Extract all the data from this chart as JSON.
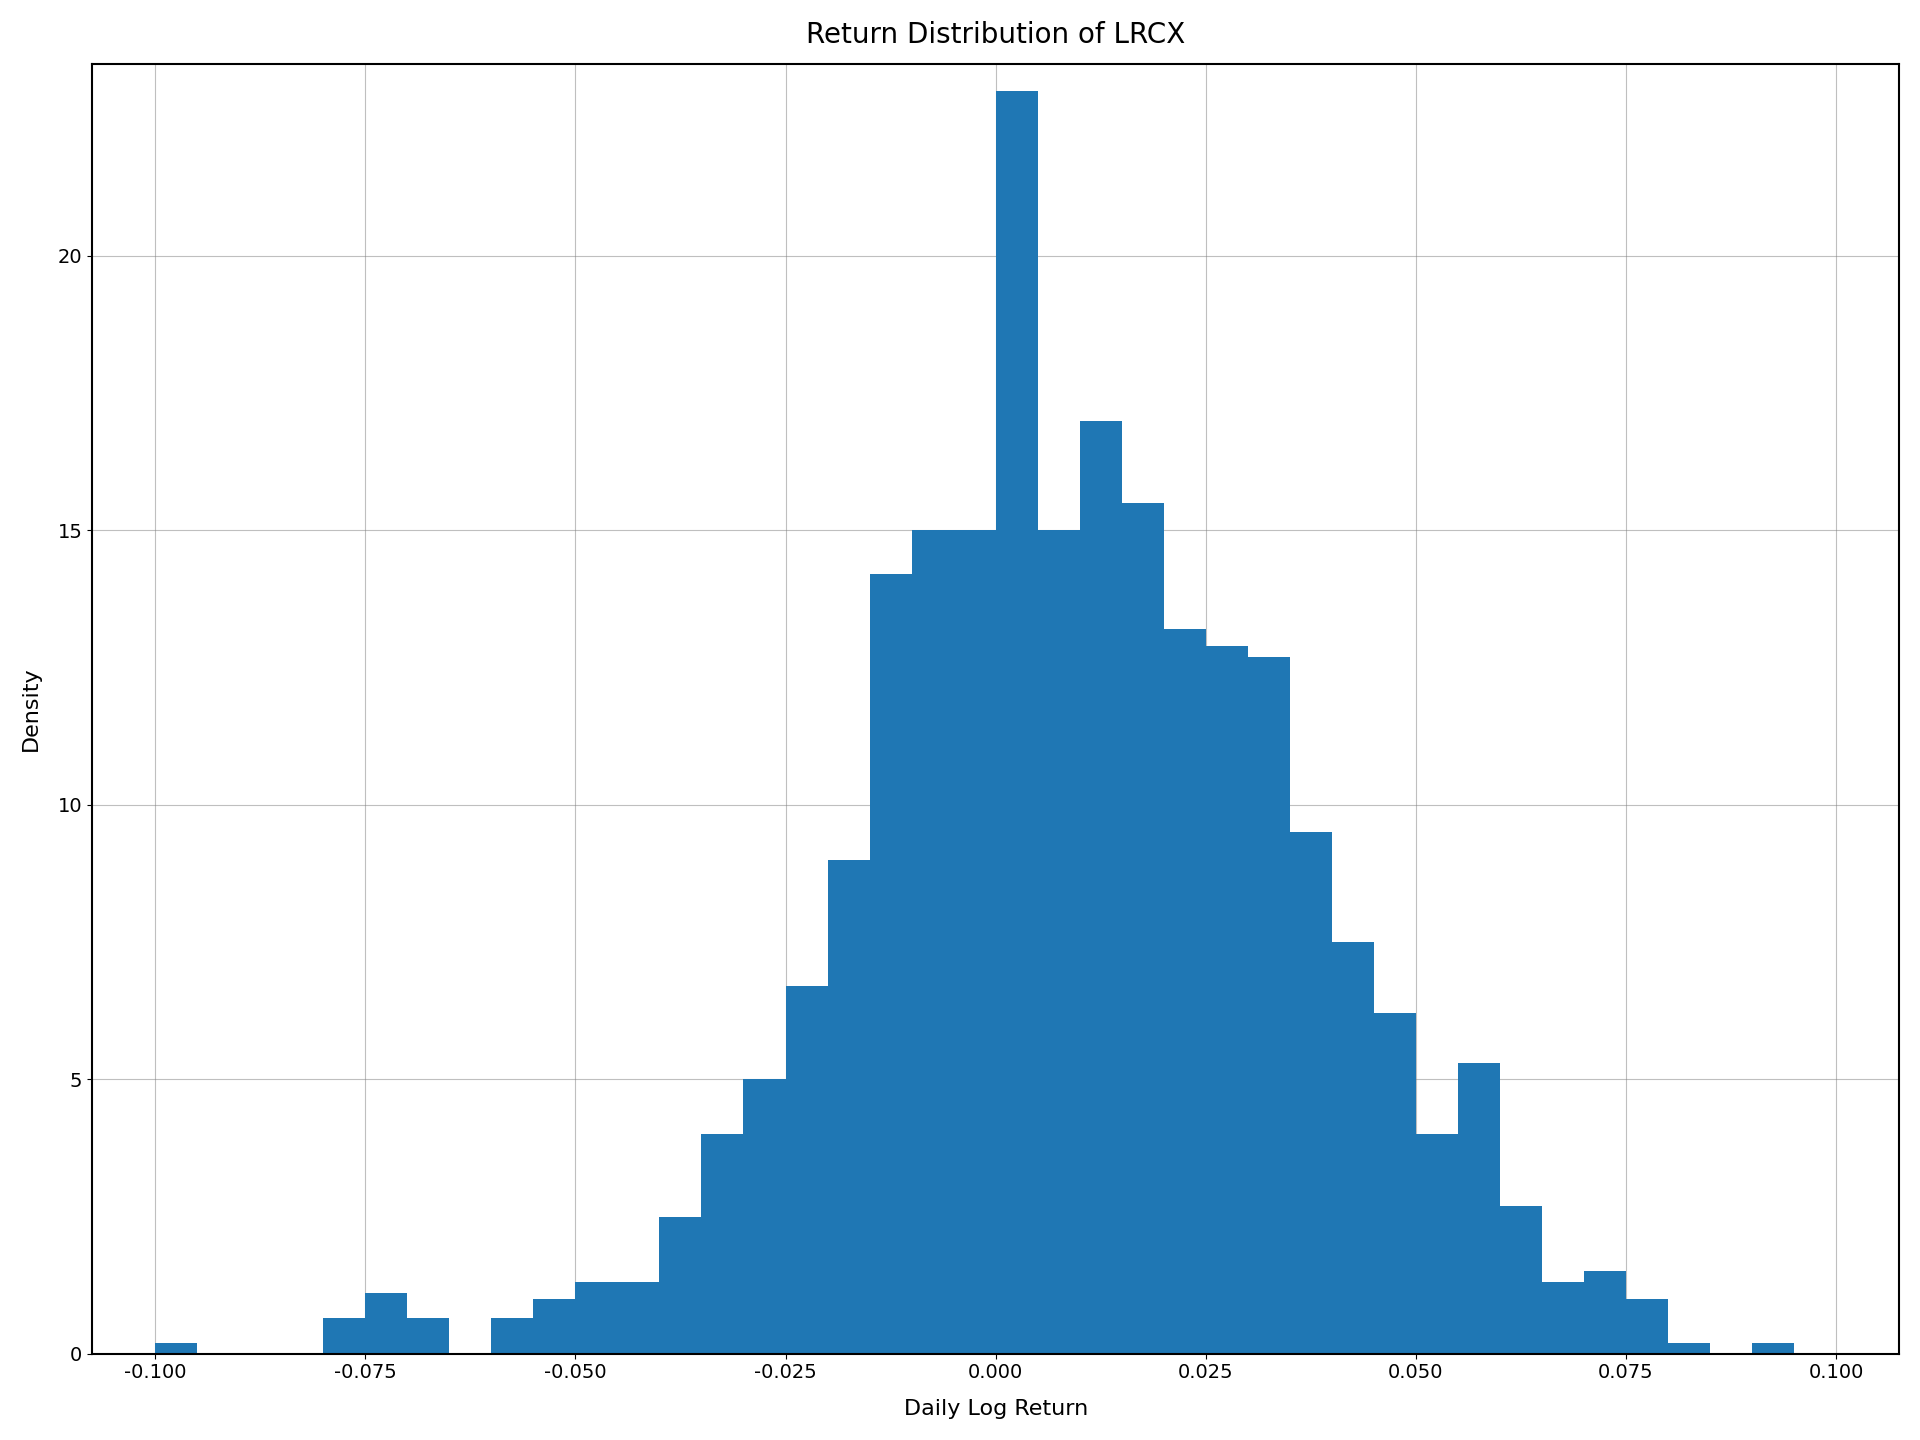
{
  "title": "Return Distribution of LRCX",
  "xlabel": "Daily Log Return",
  "ylabel": "Density",
  "bar_color": "#1f77b4",
  "xlim": [
    -0.1075,
    0.1075
  ],
  "ylim": [
    0,
    23.5
  ],
  "xticks": [
    -0.1,
    -0.075,
    -0.05,
    -0.025,
    0.0,
    0.025,
    0.05,
    0.075,
    0.1
  ],
  "yticks": [
    0,
    5,
    10,
    15,
    20
  ],
  "bin_width": 0.005,
  "bin_starts": [
    -0.1,
    -0.095,
    -0.09,
    -0.085,
    -0.08,
    -0.075,
    -0.07,
    -0.065,
    -0.06,
    -0.055,
    -0.05,
    -0.045,
    -0.04,
    -0.035,
    -0.03,
    -0.025,
    -0.02,
    -0.015,
    -0.01,
    -0.005,
    0.0,
    0.005,
    0.01,
    0.015,
    0.02,
    0.025,
    0.03,
    0.035,
    0.04,
    0.045,
    0.05,
    0.055,
    0.06,
    0.065,
    0.07,
    0.075,
    0.08,
    0.085,
    0.09,
    0.095
  ],
  "bar_heights": [
    0.2,
    0.0,
    0.0,
    0.0,
    0.65,
    1.1,
    0.65,
    0.0,
    0.65,
    1.0,
    1.3,
    1.3,
    2.5,
    4.0,
    5.0,
    6.7,
    9.0,
    14.2,
    15.0,
    15.0,
    23.0,
    15.0,
    17.0,
    15.5,
    13.2,
    12.9,
    12.7,
    9.5,
    7.5,
    6.2,
    4.0,
    5.3,
    2.7,
    1.3,
    1.5,
    1.0,
    0.2,
    0.0,
    0.2,
    0.0
  ],
  "title_fontsize": 20,
  "label_fontsize": 16,
  "tick_fontsize": 14,
  "figsize": [
    19.2,
    14.4
  ],
  "dpi": 100
}
